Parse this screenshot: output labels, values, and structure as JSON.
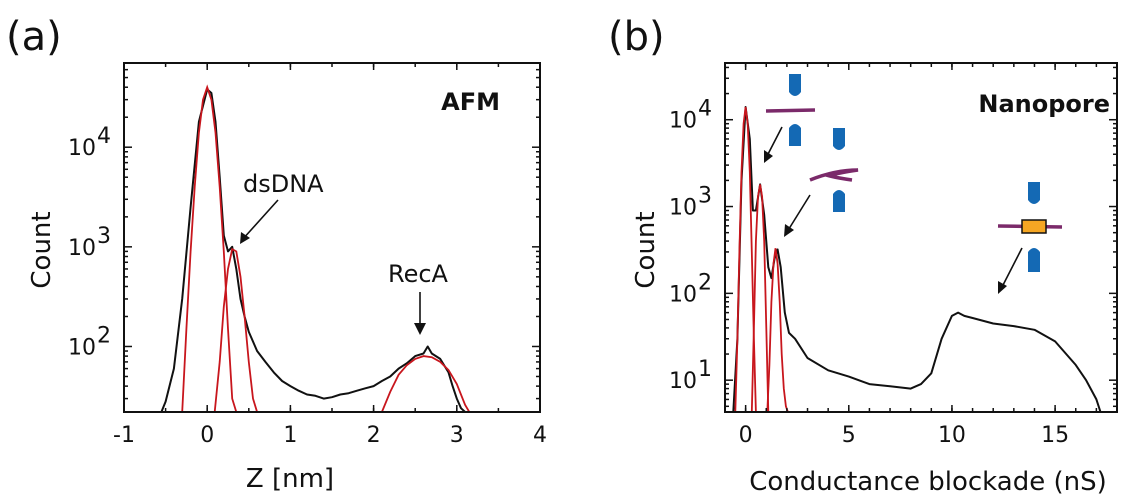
{
  "chart_data": [
    {
      "panel": "(a)",
      "type": "line",
      "method_label": "AFM",
      "xlabel": "Z [nm]",
      "ylabel": "Count",
      "xlim": [
        -1,
        4
      ],
      "ylim": [
        22,
        70000
      ],
      "yscale": "log",
      "xticks": [
        -1,
        0,
        1,
        2,
        3,
        4
      ],
      "xtick_labels": [
        "-1",
        "0",
        "1",
        "2",
        "3",
        "4"
      ],
      "yticks": [
        100,
        1000,
        10000
      ],
      "ytick_labels": [
        {
          "base": "10",
          "exp": "2"
        },
        {
          "base": "10",
          "exp": "3"
        },
        {
          "base": "10",
          "exp": "4"
        }
      ],
      "series": [
        {
          "color": "#111111",
          "x": [
            -0.55,
            -0.5,
            -0.4,
            -0.3,
            -0.2,
            -0.1,
            0.0,
            0.05,
            0.1,
            0.15,
            0.2,
            0.25,
            0.3,
            0.35,
            0.4,
            0.45,
            0.5,
            0.6,
            0.7,
            0.8,
            0.9,
            1.0,
            1.1,
            1.2,
            1.3,
            1.4,
            1.5,
            1.6,
            1.7,
            1.8,
            1.9,
            2.0,
            2.1,
            2.2,
            2.3,
            2.4,
            2.5,
            2.6,
            2.65,
            2.7,
            2.8,
            2.9,
            2.95,
            3.0,
            3.05,
            3.1
          ],
          "y": [
            22,
            28,
            60,
            300,
            2500,
            18000,
            38000,
            35000,
            18000,
            5000,
            1300,
            900,
            1000,
            600,
            300,
            200,
            140,
            90,
            70,
            55,
            45,
            40,
            36,
            33,
            32,
            30,
            31,
            33,
            34,
            36,
            38,
            40,
            45,
            50,
            60,
            68,
            80,
            85,
            100,
            85,
            75,
            55,
            40,
            30,
            24,
            22
          ]
        },
        {
          "color": "#c8161d",
          "x": [
            -0.3,
            -0.25,
            -0.2,
            -0.15,
            -0.1,
            -0.05,
            0.0,
            0.05,
            0.1,
            0.15,
            0.2,
            0.25,
            0.3,
            0.35
          ],
          "y": [
            22,
            150,
            900,
            4000,
            14000,
            30000,
            40000,
            30000,
            14000,
            4000,
            900,
            150,
            30,
            22
          ]
        },
        {
          "color": "#c8161d",
          "x": [
            0.09,
            0.15,
            0.2,
            0.25,
            0.3,
            0.35,
            0.4,
            0.45,
            0.5,
            0.55,
            0.6
          ],
          "y": [
            22,
            70,
            250,
            600,
            950,
            900,
            500,
            200,
            70,
            30,
            22
          ]
        },
        {
          "color": "#c8161d",
          "x": [
            2.1,
            2.2,
            2.3,
            2.4,
            2.5,
            2.6,
            2.7,
            2.8,
            2.9,
            3.0,
            3.1,
            3.15
          ],
          "y": [
            22,
            35,
            52,
            65,
            75,
            80,
            78,
            70,
            58,
            42,
            26,
            22
          ]
        }
      ],
      "annotations": [
        {
          "text": "dsDNA",
          "x": 0.39,
          "y": 950
        },
        {
          "text": "RecA",
          "x": 2.65,
          "y": 105
        }
      ]
    },
    {
      "panel": "(b)",
      "type": "line",
      "method_label": "Nanopore",
      "xlabel": "Conductance blockade (nS)",
      "ylabel": "Count",
      "xlim": [
        -1,
        18
      ],
      "ylim": [
        4.3,
        45000
      ],
      "yscale": "log",
      "xticks": [
        0,
        5,
        10,
        15
      ],
      "xtick_labels": [
        "0",
        "5",
        "10",
        "15"
      ],
      "yticks": [
        10,
        100,
        1000,
        10000
      ],
      "ytick_labels": [
        {
          "base": "10",
          "exp": "1"
        },
        {
          "base": "10",
          "exp": "2"
        },
        {
          "base": "10",
          "exp": "3"
        },
        {
          "base": "10",
          "exp": "4"
        }
      ],
      "series": [
        {
          "color": "#111111",
          "x": [
            -0.6,
            -0.4,
            -0.2,
            0.0,
            0.2,
            0.35,
            0.5,
            0.7,
            0.9,
            1.1,
            1.25,
            1.4,
            1.55,
            1.7,
            1.9,
            2.1,
            2.4,
            3,
            4,
            5,
            6,
            7,
            8,
            8.5,
            9,
            9.5,
            10,
            10.3,
            10.6,
            11,
            12,
            13,
            14,
            15,
            16,
            16.5,
            17,
            17.2
          ],
          "y": [
            4.3,
            30,
            2000,
            14000,
            6000,
            900,
            900,
            1800,
            800,
            200,
            150,
            250,
            320,
            200,
            60,
            35,
            30,
            18,
            13,
            11,
            9,
            8.5,
            8,
            9,
            12,
            30,
            55,
            60,
            55,
            52,
            45,
            42,
            38,
            28,
            15,
            10,
            6,
            4.3
          ]
        },
        {
          "color": "#c8161d",
          "x": [
            -0.5,
            -0.4,
            -0.3,
            -0.2,
            -0.1,
            0.0,
            0.1,
            0.2,
            0.3,
            0.4,
            0.5
          ],
          "y": [
            4.3,
            30,
            300,
            2500,
            9000,
            14000,
            9000,
            2500,
            300,
            30,
            4.3
          ]
        },
        {
          "color": "#c8161d",
          "x": [
            0.3,
            0.4,
            0.5,
            0.6,
            0.7,
            0.8,
            0.9,
            1.0,
            1.1,
            1.2
          ],
          "y": [
            4.3,
            40,
            400,
            1300,
            1800,
            1300,
            400,
            40,
            4.3,
            4.3
          ]
        },
        {
          "color": "#c8161d",
          "x": [
            1.05,
            1.15,
            1.25,
            1.35,
            1.45,
            1.55,
            1.65,
            1.75,
            1.85,
            1.95,
            2.05
          ],
          "y": [
            4.3,
            15,
            80,
            220,
            330,
            220,
            80,
            20,
            8,
            5,
            4.3
          ]
        }
      ],
      "annotations": []
    }
  ]
}
